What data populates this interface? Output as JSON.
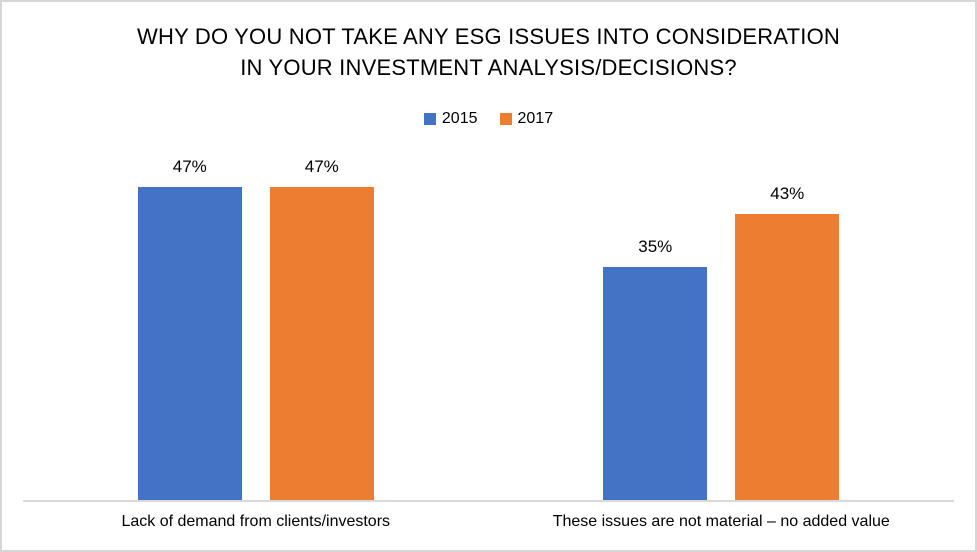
{
  "chart_data": {
    "type": "bar",
    "title": "WHY DO YOU NOT TAKE ANY ESG ISSUES INTO CONSIDERATION IN YOUR INVESTMENT ANALYSIS/DECISIONS?",
    "title_lines": [
      "WHY DO YOU NOT TAKE ANY ESG ISSUES INTO CONSIDERATION",
      "IN YOUR INVESTMENT ANALYSIS/DECISIONS?"
    ],
    "categories": [
      "Lack of demand from clients/investors",
      "These issues are not material – no added value"
    ],
    "series": [
      {
        "name": "2015",
        "color": "#4472C4",
        "values": [
          47,
          35
        ],
        "labels": [
          "47%",
          "35%"
        ]
      },
      {
        "name": "2017",
        "color": "#ED7D31",
        "values": [
          47,
          43
        ],
        "labels": [
          "47%",
          "43%"
        ]
      }
    ],
    "ylim": [
      0,
      50
    ],
    "grid": false,
    "legend_position": "top",
    "axis_line_color": "#D9D9D9",
    "text_color": "#000000",
    "xlabel": "",
    "ylabel": ""
  }
}
